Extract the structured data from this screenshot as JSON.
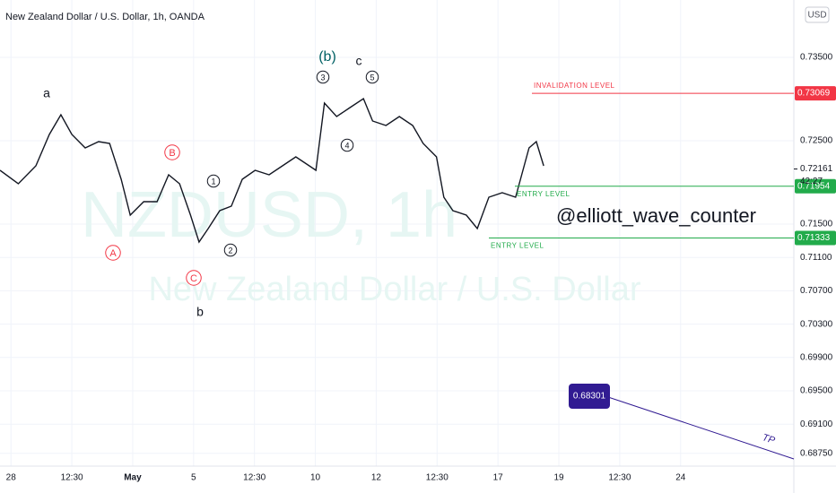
{
  "chart_data": {
    "type": "line",
    "title": "New Zealand Dollar / U.S. Dollar, 1h, OANDA",
    "watermark": "NZDUSD, 1h",
    "watermark_sub": "New Zealand Dollar / U.S. Dollar",
    "currency": "USD",
    "author": "@elliott_wave_counter",
    "color": "#131722",
    "x": [
      -0.18,
      0.12,
      0.41,
      0.63,
      0.82,
      1.0,
      1.22,
      1.44,
      1.62,
      1.81,
      1.96,
      2.18,
      2.4,
      2.59,
      2.77,
      2.95,
      3.09,
      3.24,
      3.43,
      3.62,
      3.8,
      4.01,
      4.24,
      4.46,
      4.68,
      4.9,
      5.01,
      5.15,
      5.35,
      5.57,
      5.79,
      5.94,
      6.16,
      6.38,
      6.6,
      6.77,
      6.99,
      7.11,
      7.26,
      7.48,
      7.66,
      7.85,
      8.07,
      8.29,
      8.51,
      8.63,
      8.75
    ],
    "values": [
      0.72145,
      0.71984,
      0.72199,
      0.72575,
      0.72812,
      0.72575,
      0.72414,
      0.72489,
      0.72468,
      0.72038,
      0.71608,
      0.71769,
      0.71769,
      0.72091,
      0.71984,
      0.71608,
      0.71285,
      0.71446,
      0.71661,
      0.71715,
      0.72038,
      0.72145,
      0.72091,
      0.72199,
      0.72306,
      0.72199,
      0.72145,
      0.72952,
      0.7279,
      0.72898,
      0.73005,
      0.72737,
      0.72683,
      0.7279,
      0.72683,
      0.72468,
      0.72306,
      0.71823,
      0.71661,
      0.71608,
      0.71446,
      0.71823,
      0.71876,
      0.71823,
      0.72414,
      0.72489,
      0.72199
    ],
    "xlim": [
      -0.18,
      12.86
    ],
    "ylim": [
      0.68597,
      0.74188
    ],
    "xticks": [
      {
        "value": 0,
        "label": "28"
      },
      {
        "value": 1,
        "label": "12:30"
      },
      {
        "value": 2,
        "label": "May"
      },
      {
        "value": 3,
        "label": "5"
      },
      {
        "value": 4,
        "label": "12:30"
      },
      {
        "value": 5,
        "label": "10"
      },
      {
        "value": 6,
        "label": "12"
      },
      {
        "value": 7,
        "label": "12:30"
      },
      {
        "value": 8,
        "label": "17"
      },
      {
        "value": 9,
        "label": "19"
      },
      {
        "value": 10,
        "label": "12:30"
      },
      {
        "value": 11,
        "label": "24"
      }
    ],
    "yticks": [
      {
        "value": 0.735,
        "label": "0.73500"
      },
      {
        "value": 0.725,
        "label": "0.72500"
      },
      {
        "value": 0.715,
        "label": "0.71500"
      },
      {
        "value": 0.711,
        "label": "0.71100"
      },
      {
        "value": 0.707,
        "label": "0.70700"
      },
      {
        "value": 0.703,
        "label": "0.70300"
      },
      {
        "value": 0.699,
        "label": "0.69900"
      },
      {
        "value": 0.695,
        "label": "0.69500"
      },
      {
        "value": 0.691,
        "label": "0.69100"
      },
      {
        "value": 0.6875,
        "label": "0.68750"
      }
    ],
    "grid": true,
    "levels": [
      {
        "name": "INVALIDATION LEVEL",
        "value": 0.73069,
        "color": "#f23645"
      },
      {
        "name": "ENTRY LEVEL",
        "value": 0.71954,
        "color": "#22ab4b"
      },
      {
        "name": "ENTRY LEVEL",
        "value": 0.71333,
        "color": "#22ab4b"
      }
    ],
    "current_price": {
      "value": 0.72161,
      "countdown": "42:27"
    },
    "target": {
      "label": "TP",
      "value": 0.68301,
      "color": "#311b92"
    },
    "annotations": [
      {
        "text": "a"
      },
      {
        "text": "b"
      },
      {
        "text": "(b)"
      },
      {
        "text": "c"
      },
      {
        "text": "A"
      },
      {
        "text": "B"
      },
      {
        "text": "C"
      },
      {
        "text": "1"
      },
      {
        "text": "2"
      },
      {
        "text": "3"
      },
      {
        "text": "4"
      },
      {
        "text": "5"
      }
    ]
  }
}
